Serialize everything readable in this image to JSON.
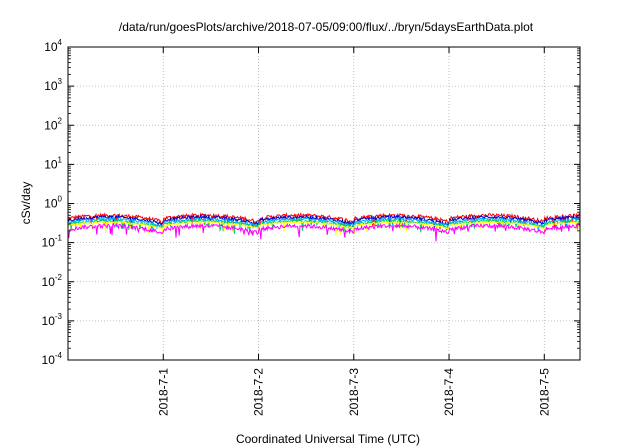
{
  "chart_data": {
    "type": "line",
    "title": "/data/run/goesPlots/archive/2018-07-05/09:00/flux/../bryn/5daysEarthData.plot",
    "xlabel": "Coordinated Universal Time (UTC)",
    "ylabel": "cSv/day",
    "y_scale": "log",
    "ylim": [
      0.0001,
      10000
    ],
    "y_ticks": [
      {
        "base": "10",
        "exp": "-4",
        "value": 0.0001
      },
      {
        "base": "10",
        "exp": "-3",
        "value": 0.001
      },
      {
        "base": "10",
        "exp": "-2",
        "value": 0.01
      },
      {
        "base": "10",
        "exp": "-1",
        "value": 0.1
      },
      {
        "base": "10",
        "exp": "0",
        "value": 1
      },
      {
        "base": "10",
        "exp": "1",
        "value": 10
      },
      {
        "base": "10",
        "exp": "2",
        "value": 100
      },
      {
        "base": "10",
        "exp": "3",
        "value": 1000
      },
      {
        "base": "10",
        "exp": "4",
        "value": 10000
      }
    ],
    "xlim": [
      "2018-06-30 00:00",
      "2018-07-05 09:00"
    ],
    "x_ticks": [
      {
        "label": "2018-7-1",
        "value": "2018-07-01"
      },
      {
        "label": "2018-7-2",
        "value": "2018-07-02"
      },
      {
        "label": "2018-7-3",
        "value": "2018-07-03"
      },
      {
        "label": "2018-7-4",
        "value": "2018-07-04"
      },
      {
        "label": "2018-7-5",
        "value": "2018-07-05"
      }
    ],
    "grid": true,
    "legend": "none",
    "series": [
      {
        "color": "#ff0000",
        "level": [
          0.42,
          0.47,
          0.5,
          0.5,
          0.47,
          0.42,
          0.34
        ],
        "noise": 0.1
      },
      {
        "color": "#0000cc",
        "level": [
          0.37,
          0.42,
          0.45,
          0.45,
          0.42,
          0.37,
          0.3
        ],
        "noise": 0.09
      },
      {
        "color": "#00aaff",
        "level": [
          0.33,
          0.37,
          0.4,
          0.4,
          0.37,
          0.33,
          0.27
        ],
        "noise": 0.07
      },
      {
        "color": "#00cc66",
        "level": [
          0.3,
          0.33,
          0.36,
          0.36,
          0.33,
          0.3,
          0.25
        ],
        "noise": 0.06
      },
      {
        "color": "#ffff00",
        "level": [
          0.28,
          0.31,
          0.33,
          0.33,
          0.31,
          0.28,
          0.23
        ],
        "noise": 0.05
      },
      {
        "color": "#ff00ff",
        "level": [
          0.22,
          0.25,
          0.27,
          0.27,
          0.25,
          0.22,
          0.18
        ],
        "noise": 0.12
      }
    ]
  }
}
